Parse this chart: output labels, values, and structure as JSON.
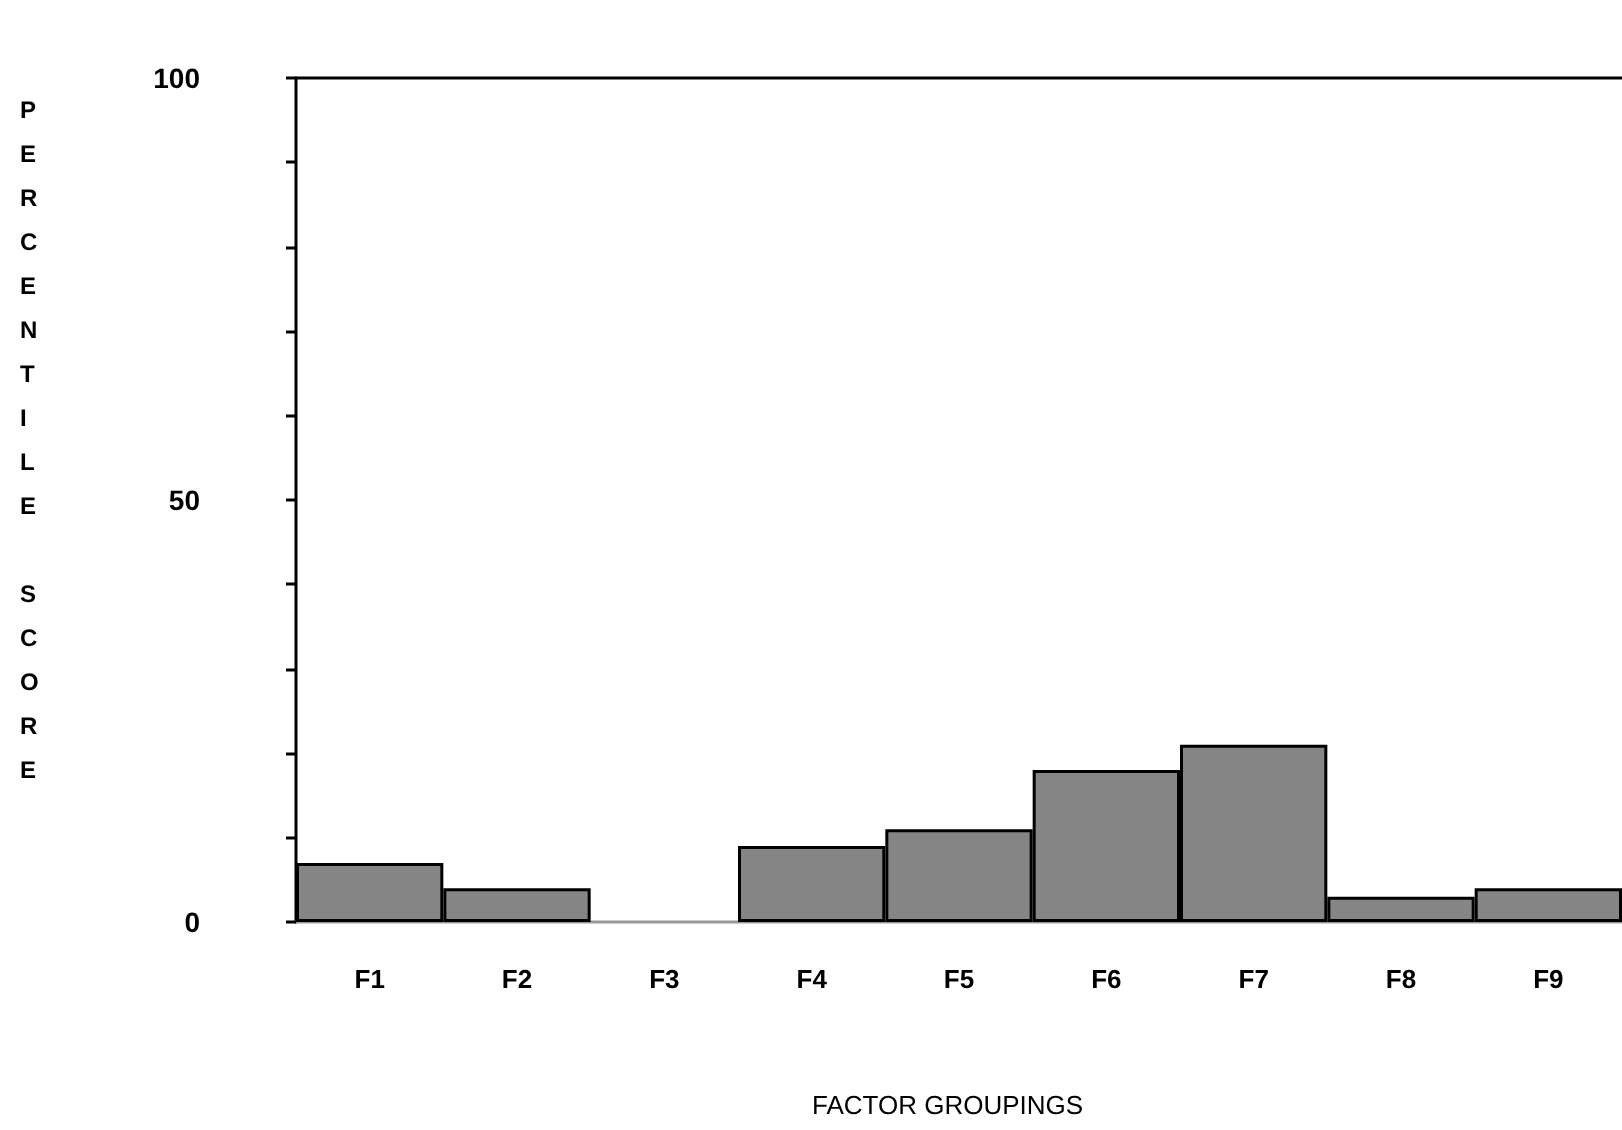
{
  "chart_data": {
    "type": "bar",
    "categories": [
      "F1",
      "F2",
      "F3",
      "F4",
      "F5",
      "F6",
      "F7",
      "F8",
      "F9"
    ],
    "values": [
      7,
      4,
      0,
      9,
      11,
      18,
      21,
      3,
      4
    ],
    "color": "#858585",
    "xlabel": "FACTOR GROUPINGS",
    "ylabel": "PERCENTILE SCORE",
    "ylim": [
      0,
      100
    ],
    "yticks": [
      0,
      {
        "value": 10,
        "label": null
      },
      {
        "value": 20,
        "label": null
      },
      {
        "value": 30,
        "label": null
      },
      {
        "value": 40,
        "label": null
      },
      50,
      {
        "value": 60,
        "label": null
      },
      {
        "value": 70,
        "label": null
      },
      {
        "value": 80,
        "label": null
      },
      {
        "value": 90,
        "label": null
      },
      100
    ],
    "grid": false
  }
}
